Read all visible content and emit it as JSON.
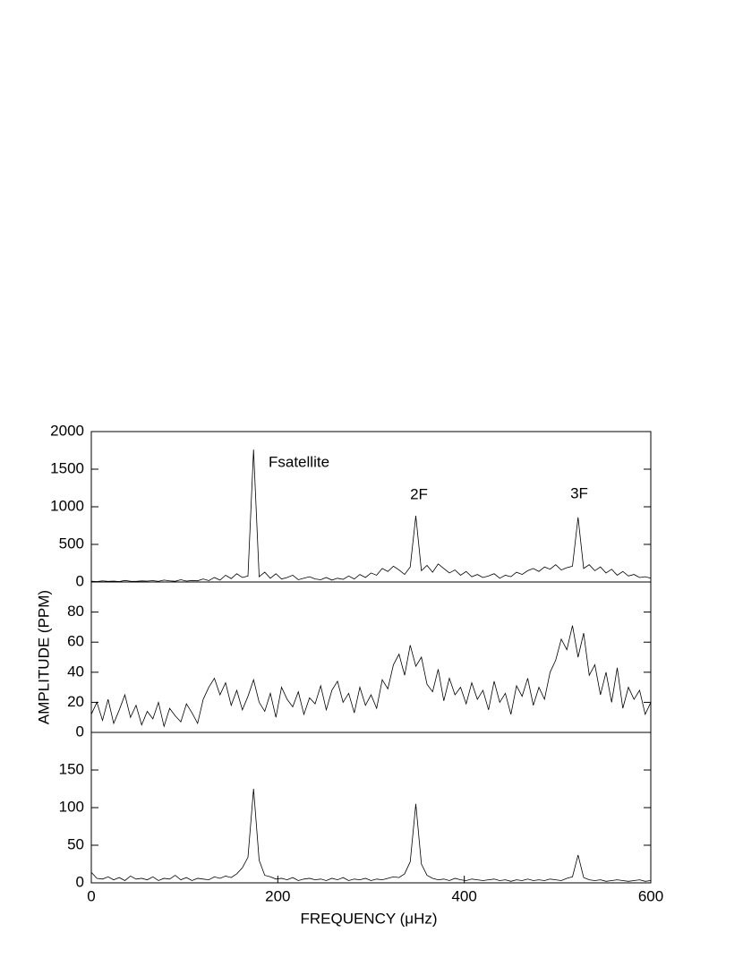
{
  "chart_data": [
    {
      "type": "line",
      "annotations": [
        "Fsatellite",
        "2F",
        "3F"
      ],
      "x": [
        0,
        6,
        12,
        18,
        24,
        30,
        36,
        42,
        48,
        54,
        60,
        66,
        72,
        78,
        84,
        90,
        96,
        102,
        108,
        114,
        120,
        126,
        132,
        138,
        144,
        150,
        156,
        162,
        168,
        174,
        180,
        186,
        192,
        198,
        204,
        210,
        216,
        222,
        228,
        234,
        240,
        246,
        252,
        258,
        264,
        270,
        276,
        282,
        288,
        294,
        300,
        306,
        312,
        318,
        324,
        330,
        336,
        342,
        348,
        354,
        360,
        366,
        372,
        378,
        384,
        390,
        396,
        402,
        408,
        414,
        420,
        426,
        432,
        438,
        444,
        450,
        456,
        462,
        468,
        474,
        480,
        486,
        492,
        498,
        504,
        510,
        516,
        522,
        528,
        534,
        540,
        546,
        552,
        558,
        564,
        570,
        576,
        582,
        588,
        594,
        600
      ],
      "values": [
        10,
        5,
        15,
        8,
        12,
        6,
        20,
        10,
        8,
        14,
        12,
        18,
        9,
        25,
        15,
        10,
        30,
        12,
        20,
        16,
        40,
        18,
        60,
        25,
        90,
        45,
        110,
        60,
        80,
        1760,
        70,
        130,
        50,
        110,
        40,
        60,
        90,
        30,
        50,
        70,
        40,
        30,
        60,
        25,
        50,
        35,
        80,
        40,
        100,
        60,
        120,
        90,
        180,
        140,
        210,
        160,
        100,
        200,
        880,
        150,
        220,
        130,
        240,
        180,
        120,
        160,
        90,
        140,
        70,
        100,
        60,
        80,
        110,
        50,
        90,
        70,
        130,
        100,
        150,
        180,
        140,
        200,
        170,
        230,
        160,
        190,
        210,
        860,
        180,
        230,
        150,
        200,
        120,
        170,
        90,
        140,
        80,
        100,
        60,
        70,
        50
      ],
      "color": "#000000",
      "xlim": [
        0,
        600
      ],
      "ylim": [
        0,
        2000
      ],
      "yticks": [
        0,
        500,
        1000,
        1500,
        2000
      ]
    },
    {
      "type": "line",
      "ylabel": "AMPLITUDE (PPM)",
      "x": [
        0,
        6,
        12,
        18,
        24,
        30,
        36,
        42,
        48,
        54,
        60,
        66,
        72,
        78,
        84,
        90,
        96,
        102,
        108,
        114,
        120,
        126,
        132,
        138,
        144,
        150,
        156,
        162,
        168,
        174,
        180,
        186,
        192,
        198,
        204,
        210,
        216,
        222,
        228,
        234,
        240,
        246,
        252,
        258,
        264,
        270,
        276,
        282,
        288,
        294,
        300,
        306,
        312,
        318,
        324,
        330,
        336,
        342,
        348,
        354,
        360,
        366,
        372,
        378,
        384,
        390,
        396,
        402,
        408,
        414,
        420,
        426,
        432,
        438,
        444,
        450,
        456,
        462,
        468,
        474,
        480,
        486,
        492,
        498,
        504,
        510,
        516,
        522,
        528,
        534,
        540,
        546,
        552,
        558,
        564,
        570,
        576,
        582,
        588,
        594,
        600
      ],
      "values": [
        12,
        20,
        8,
        22,
        6,
        15,
        25,
        10,
        18,
        5,
        14,
        9,
        20,
        4,
        16,
        11,
        7,
        19,
        13,
        6,
        22,
        30,
        36,
        25,
        33,
        18,
        28,
        15,
        24,
        35,
        20,
        14,
        26,
        10,
        30,
        22,
        17,
        27,
        12,
        23,
        19,
        31,
        15,
        28,
        34,
        20,
        26,
        13,
        30,
        18,
        25,
        16,
        35,
        29,
        45,
        52,
        38,
        58,
        44,
        50,
        32,
        27,
        42,
        21,
        36,
        25,
        30,
        19,
        33,
        22,
        28,
        15,
        34,
        20,
        26,
        12,
        31,
        24,
        36,
        18,
        30,
        22,
        40,
        48,
        62,
        55,
        71,
        50,
        66,
        38,
        45,
        25,
        40,
        20,
        43,
        16,
        30,
        22,
        28,
        12,
        20
      ],
      "color": "#000000",
      "xlim": [
        0,
        600
      ],
      "ylim": [
        0,
        100
      ],
      "yticks": [
        0,
        20,
        40,
        60,
        80
      ]
    },
    {
      "type": "line",
      "xlabel": "FREQUENCY (μHz)",
      "x": [
        0,
        6,
        12,
        18,
        24,
        30,
        36,
        42,
        48,
        54,
        60,
        66,
        72,
        78,
        84,
        90,
        96,
        102,
        108,
        114,
        120,
        126,
        132,
        138,
        144,
        150,
        156,
        162,
        168,
        174,
        180,
        186,
        192,
        198,
        204,
        210,
        216,
        222,
        228,
        234,
        240,
        246,
        252,
        258,
        264,
        270,
        276,
        282,
        288,
        294,
        300,
        306,
        312,
        318,
        324,
        330,
        336,
        342,
        348,
        354,
        360,
        366,
        372,
        378,
        384,
        390,
        396,
        402,
        408,
        414,
        420,
        426,
        432,
        438,
        444,
        450,
        456,
        462,
        468,
        474,
        480,
        486,
        492,
        498,
        504,
        510,
        516,
        522,
        528,
        534,
        540,
        546,
        552,
        558,
        564,
        570,
        576,
        582,
        588,
        594,
        600
      ],
      "values": [
        14,
        6,
        5,
        8,
        4,
        7,
        3,
        9,
        5,
        6,
        4,
        8,
        3,
        6,
        5,
        10,
        4,
        7,
        3,
        6,
        5,
        4,
        8,
        6,
        9,
        7,
        12,
        20,
        34,
        125,
        30,
        10,
        8,
        5,
        6,
        4,
        7,
        3,
        5,
        6,
        4,
        5,
        3,
        6,
        4,
        7,
        3,
        5,
        4,
        6,
        3,
        5,
        4,
        6,
        8,
        7,
        12,
        28,
        105,
        25,
        10,
        6,
        4,
        5,
        3,
        6,
        4,
        3,
        5,
        4,
        3,
        4,
        5,
        3,
        4,
        2,
        4,
        3,
        5,
        3,
        4,
        3,
        5,
        4,
        3,
        6,
        8,
        37,
        7,
        4,
        3,
        4,
        2,
        3,
        4,
        3,
        2,
        3,
        4,
        2,
        3
      ],
      "color": "#000000",
      "xlim": [
        0,
        600
      ],
      "xticks": [
        0,
        200,
        400,
        600
      ],
      "ylim": [
        0,
        200
      ],
      "yticks": [
        0,
        50,
        100,
        150
      ]
    }
  ]
}
